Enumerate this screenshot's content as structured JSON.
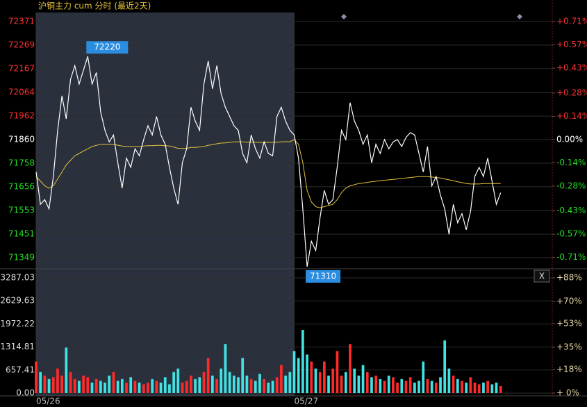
{
  "title": "沪铜主力 cum 分时 (最近2天)",
  "close_button": "X",
  "chart_data": [
    {
      "type": "line",
      "categories": [
        "05/26",
        null,
        null,
        null,
        null,
        null,
        null,
        null,
        null,
        null,
        null,
        null,
        null,
        null,
        null,
        null,
        null,
        null,
        null,
        null,
        null,
        null,
        null,
        null,
        null,
        null,
        null,
        null,
        null,
        null,
        null,
        null,
        null,
        null,
        null,
        null,
        null,
        null,
        null,
        null,
        null,
        null,
        null,
        null,
        null,
        null,
        null,
        null,
        null,
        null,
        null,
        null,
        null,
        null,
        null,
        null,
        null,
        null,
        null,
        null,
        "05/27",
        null,
        null,
        null,
        null,
        null,
        null,
        null,
        null,
        null,
        null,
        null,
        null,
        null,
        null,
        null,
        null,
        null,
        null,
        null,
        null,
        null,
        null,
        null,
        null,
        null,
        null,
        null,
        null,
        null,
        null,
        null,
        null,
        null,
        null,
        null,
        null,
        null,
        null,
        null,
        null,
        null,
        null,
        null,
        null,
        null,
        null,
        null,
        null,
        null,
        null,
        null,
        null,
        null,
        null,
        null,
        null,
        null,
        null,
        null
      ],
      "high_label": "72220",
      "low_label": "71310",
      "ylim": [
        71304,
        72410
      ],
      "yticks": [
        72371,
        72269,
        72167,
        72064,
        71962,
        71860,
        71758,
        71656,
        71553,
        71451,
        71349
      ],
      "y2lim": [
        -0.774,
        0.765
      ],
      "y2ticks": [
        {
          "value": 0.71,
          "label": "+0.71%"
        },
        {
          "value": 0.57,
          "label": "+0.57%"
        },
        {
          "value": 0.43,
          "label": "+0.43%"
        },
        {
          "value": 0.28,
          "label": "+0.28%"
        },
        {
          "value": 0.14,
          "label": "+0.14%"
        },
        {
          "value": 0,
          "label": "0.00%"
        },
        {
          "value": -0.14,
          "label": "-0.14%"
        },
        {
          "value": -0.28,
          "label": "-0.28%"
        },
        {
          "value": -0.43,
          "label": "-0.43%"
        },
        {
          "value": -0.57,
          "label": "-0.57%"
        },
        {
          "value": -0.71,
          "label": "-0.71%"
        }
      ],
      "up_color": "#ff3030",
      "flat_color": "#ffffff",
      "down_color": "#22dd22",
      "grid": true,
      "series": [
        {
          "name": "price",
          "color": "#ffffff",
          "values": [
            71720,
            71580,
            71600,
            71560,
            71700,
            71900,
            72050,
            71950,
            72120,
            72180,
            72100,
            72160,
            72220,
            72100,
            72150,
            71980,
            71900,
            71850,
            71880,
            71760,
            71650,
            71780,
            71740,
            71820,
            71790,
            71860,
            71920,
            71880,
            71960,
            71880,
            71840,
            71740,
            71650,
            71580,
            71760,
            71820,
            72000,
            71940,
            71900,
            72100,
            72200,
            72080,
            72180,
            72060,
            72000,
            71960,
            71920,
            71900,
            71800,
            71760,
            71880,
            71820,
            71780,
            71850,
            71800,
            71790,
            71960,
            72000,
            71940,
            71900,
            71880,
            71780,
            71560,
            71310,
            71420,
            71380,
            71520,
            71640,
            71580,
            71600,
            71740,
            71900,
            71860,
            72020,
            71940,
            71900,
            71840,
            71880,
            71760,
            71840,
            71800,
            71860,
            71820,
            71850,
            71860,
            71830,
            71870,
            71890,
            71880,
            71800,
            71720,
            71830,
            71660,
            71700,
            71620,
            71560,
            71450,
            71580,
            71500,
            71540,
            71470,
            71550,
            71700,
            71740,
            71700,
            71780,
            71680,
            71580,
            71630,
            null,
            null,
            null,
            null,
            null,
            null,
            null,
            null,
            null,
            null,
            null
          ]
        },
        {
          "name": "average",
          "color": "#e3c23c",
          "values": [
            71700,
            71680,
            71660,
            71650,
            71660,
            71690,
            71720,
            71750,
            71770,
            71790,
            71800,
            71810,
            71820,
            71830,
            71835,
            71840,
            71840,
            71840,
            71838,
            71836,
            71832,
            71830,
            71830,
            71830,
            71830,
            71832,
            71834,
            71834,
            71835,
            71835,
            71834,
            71832,
            71828,
            71822,
            71822,
            71822,
            71826,
            71826,
            71828,
            71830,
            71835,
            71838,
            71842,
            71845,
            71846,
            71848,
            71850,
            71850,
            71850,
            71849,
            71849,
            71849,
            71848,
            71848,
            71848,
            71848,
            71849,
            71850,
            71851,
            71851,
            71860,
            71840,
            71760,
            71640,
            71590,
            71570,
            71565,
            71570,
            71575,
            71580,
            71600,
            71630,
            71650,
            71660,
            71665,
            71670,
            71672,
            71675,
            71678,
            71680,
            71682,
            71684,
            71686,
            71688,
            71690,
            71692,
            71694,
            71696,
            71698,
            71700,
            71700,
            71700,
            71698,
            71696,
            71694,
            71690,
            71686,
            71682,
            71678,
            71674,
            71670,
            71668,
            71668,
            71668,
            71670,
            71670,
            71670,
            71670,
            71670,
            null,
            null,
            null,
            null,
            null,
            null,
            null,
            null,
            null,
            null,
            null
          ]
        }
      ]
    },
    {
      "type": "bar",
      "ylim": [
        0,
        3485
      ],
      "yticks": [
        3287.03,
        2629.63,
        1972.22,
        1314.81,
        657.41,
        {
          "value": 0,
          "label": "0.00"
        }
      ],
      "y2lim": [
        0,
        93.3
      ],
      "y2ticks": [
        {
          "value": 88,
          "label": "+88%"
        },
        {
          "value": 70,
          "label": "+70%"
        },
        {
          "value": 53,
          "label": "+53%"
        },
        {
          "value": 35,
          "label": "+35%"
        },
        {
          "value": 18,
          "label": "+18%"
        },
        {
          "value": 0,
          "label": "+ 0%"
        }
      ],
      "up_color": "#ff2a2a",
      "down_color": "#3fe3e3",
      "grid": true,
      "series": [
        {
          "name": "volume",
          "values": [
            900,
            600,
            500,
            400,
            450,
            700,
            500,
            1300,
            600,
            400,
            350,
            500,
            450,
            300,
            400,
            350,
            300,
            500,
            600,
            350,
            400,
            300,
            450,
            350,
            300,
            250,
            300,
            400,
            350,
            300,
            450,
            250,
            600,
            700,
            300,
            350,
            500,
            400,
            450,
            600,
            1000,
            500,
            400,
            700,
            1400,
            600,
            500,
            450,
            1000,
            500,
            400,
            350,
            550,
            400,
            300,
            350,
            450,
            800,
            500,
            600,
            1200,
            1000,
            1800,
            1100,
            900,
            700,
            600,
            900,
            500,
            700,
            1200,
            500,
            600,
            1400,
            700,
            500,
            800,
            600,
            450,
            500,
            400,
            350,
            500,
            450,
            300,
            400,
            350,
            450,
            300,
            350,
            900,
            400,
            350,
            300,
            450,
            1500,
            700,
            500,
            400,
            350,
            300,
            450,
            300,
            250,
            300,
            350,
            250,
            300,
            200,
            null,
            null,
            null,
            null,
            null,
            null,
            null,
            null,
            null,
            null,
            null
          ]
        }
      ]
    }
  ]
}
